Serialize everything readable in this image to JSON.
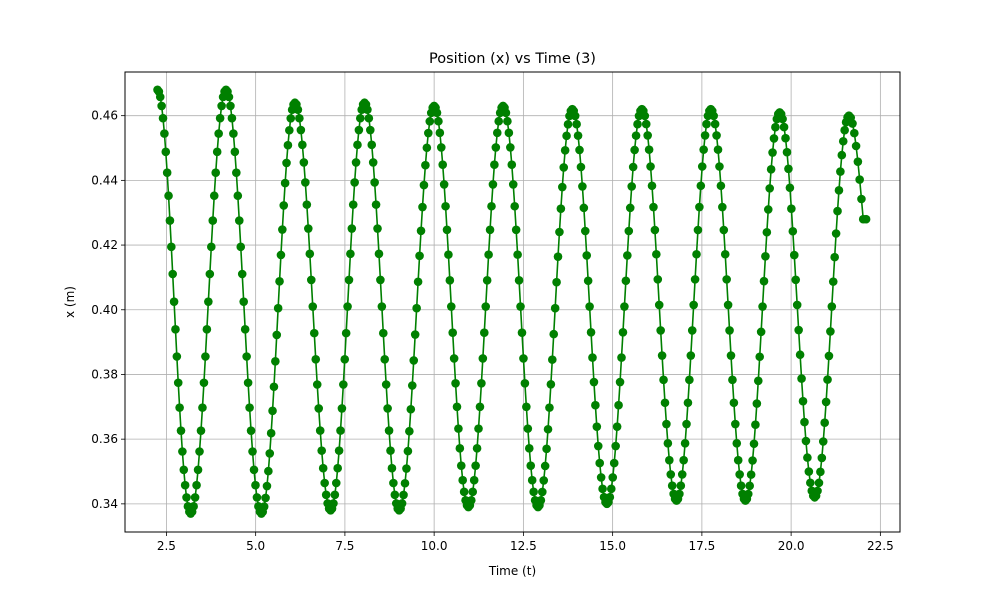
{
  "chart_data": {
    "type": "line",
    "title": "Position (x) vs Time (3)",
    "xlabel": "Time (t)",
    "ylabel": "x (m)",
    "xlim": [
      1.34,
      23.05
    ],
    "ylim": [
      0.3313,
      0.4735
    ],
    "xticks": [
      2.5,
      5.0,
      7.5,
      10.0,
      12.5,
      15.0,
      17.5,
      20.0,
      22.5
    ],
    "xtick_labels": [
      "2.5",
      "5.0",
      "7.5",
      "10.0",
      "12.5",
      "15.0",
      "17.5",
      "20.0",
      "22.5"
    ],
    "yticks": [
      0.34,
      0.36,
      0.38,
      0.4,
      0.42,
      0.44,
      0.46
    ],
    "ytick_labels": [
      "0.34",
      "0.36",
      "0.38",
      "0.40",
      "0.42",
      "0.44",
      "0.46"
    ],
    "grid": true,
    "legend": "none",
    "series_color": "#008000",
    "marker": "circle",
    "extrema": [
      {
        "t": 2.25,
        "x": 0.468
      },
      {
        "t": 3.18,
        "x": 0.337
      },
      {
        "t": 4.17,
        "x": 0.468
      },
      {
        "t": 5.16,
        "x": 0.337
      },
      {
        "t": 6.1,
        "x": 0.464
      },
      {
        "t": 7.1,
        "x": 0.338
      },
      {
        "t": 8.05,
        "x": 0.464
      },
      {
        "t": 9.02,
        "x": 0.338
      },
      {
        "t": 10.0,
        "x": 0.463
      },
      {
        "t": 10.96,
        "x": 0.339
      },
      {
        "t": 11.93,
        "x": 0.463
      },
      {
        "t": 12.91,
        "x": 0.339
      },
      {
        "t": 13.87,
        "x": 0.462
      },
      {
        "t": 14.84,
        "x": 0.34
      },
      {
        "t": 15.82,
        "x": 0.462
      },
      {
        "t": 16.79,
        "x": 0.341
      },
      {
        "t": 17.75,
        "x": 0.462
      },
      {
        "t": 18.72,
        "x": 0.341
      },
      {
        "t": 19.68,
        "x": 0.461
      },
      {
        "t": 20.66,
        "x": 0.342
      },
      {
        "t": 21.62,
        "x": 0.46
      }
    ],
    "end_points": [
      {
        "t": 22.02,
        "x": 0.428
      },
      {
        "t": 22.1,
        "x": 0.428
      }
    ],
    "samples_per_half_cycle": 24
  }
}
